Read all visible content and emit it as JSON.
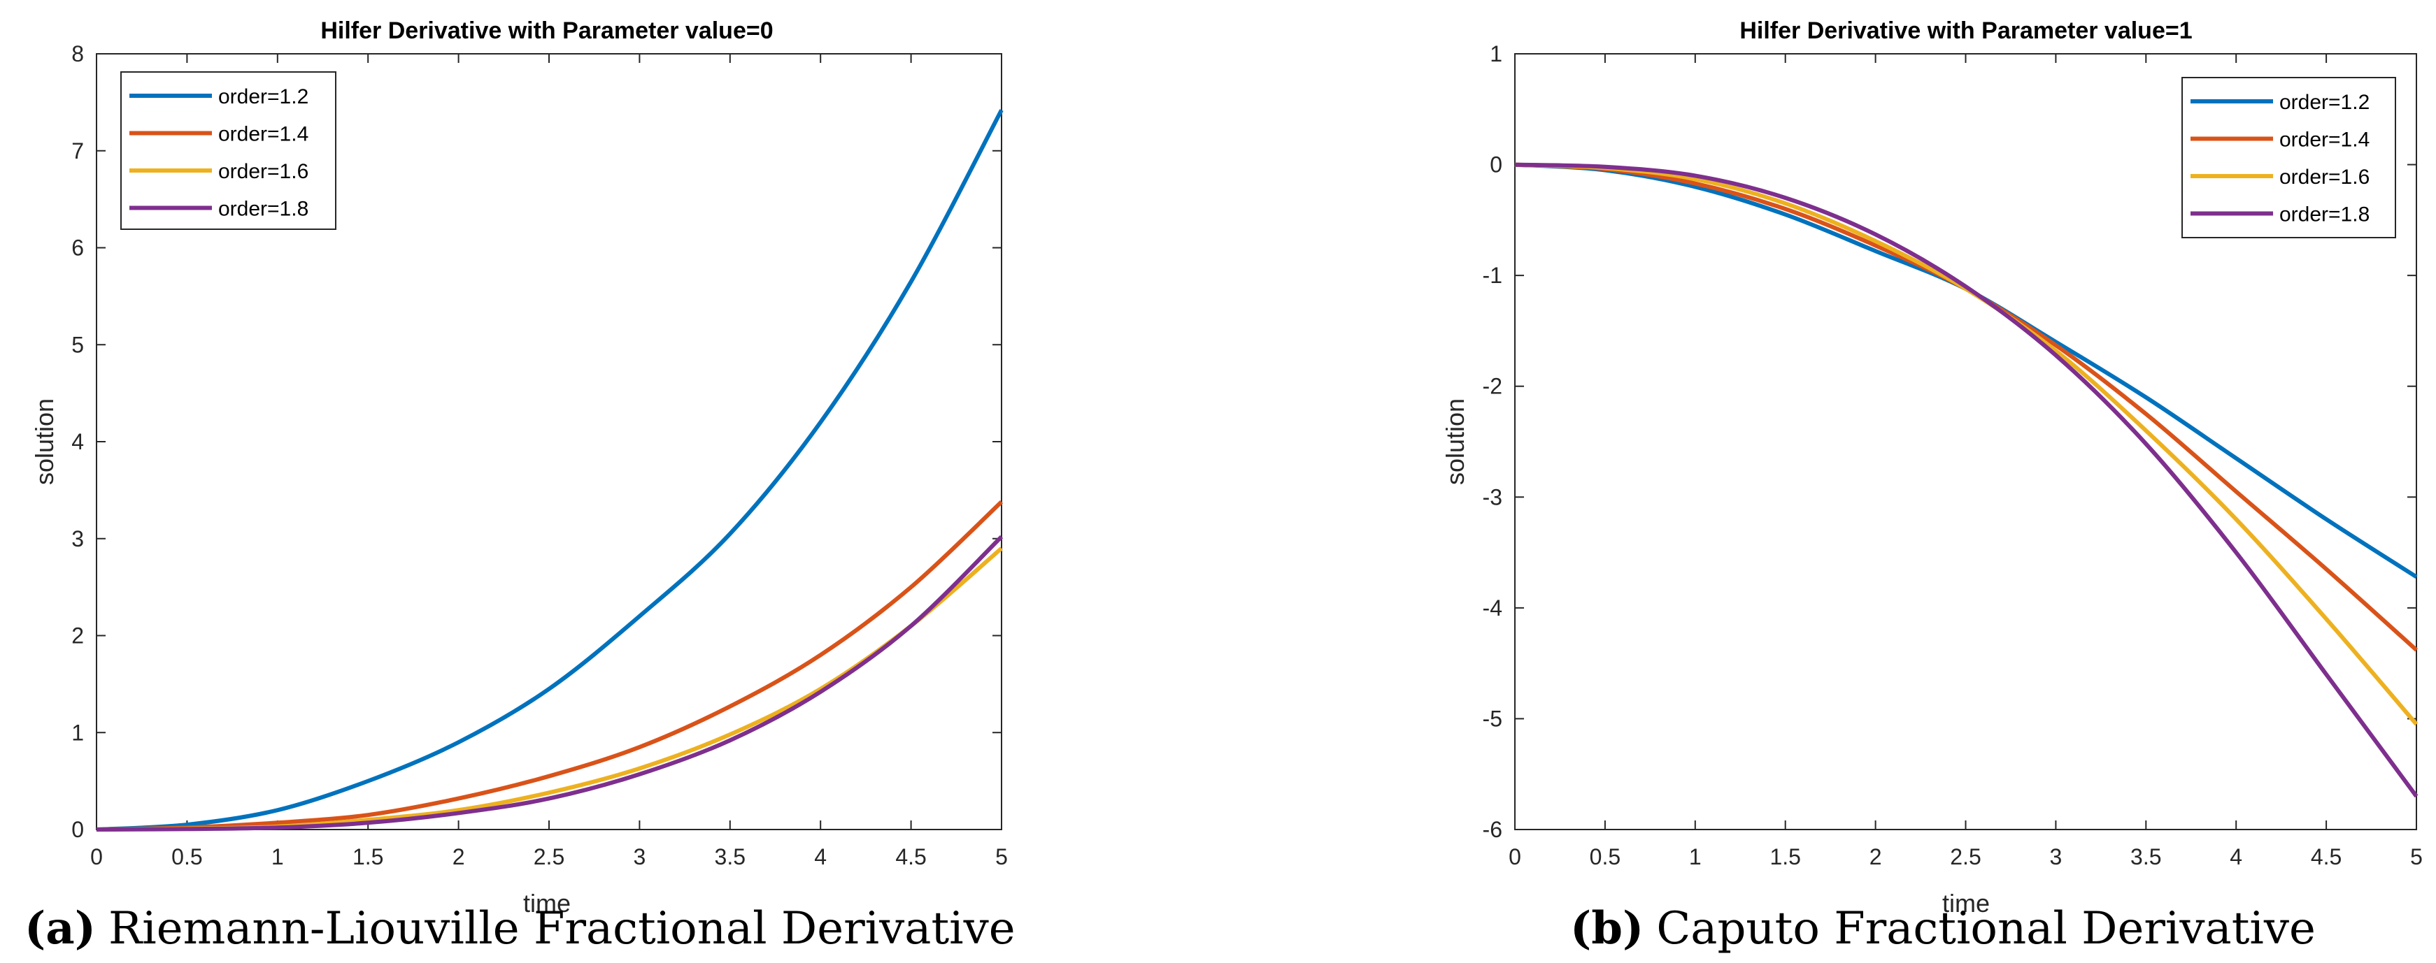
{
  "chart_data": [
    {
      "type": "line",
      "title": "Hilfer Derivative with Parameter value=0",
      "xlabel": "time",
      "ylabel": "solution",
      "caption_label": "(a)",
      "caption_text": "Riemann-Liouville Fractional Derivative",
      "xlim": [
        0,
        5
      ],
      "ylim": [
        0,
        8
      ],
      "xticks": [
        "0",
        "0.5",
        "1",
        "1.5",
        "2",
        "2.5",
        "3",
        "3.5",
        "4",
        "4.5",
        "5"
      ],
      "yticks": [
        "0",
        "1",
        "2",
        "3",
        "4",
        "5",
        "6",
        "7",
        "8"
      ],
      "legend_position": "top-left",
      "x": [
        0,
        0.5,
        1,
        1.5,
        2,
        2.5,
        3,
        3.5,
        4,
        4.5,
        5
      ],
      "series": [
        {
          "name": "order=1.2",
          "color": "#0072BD",
          "values": [
            0,
            0.05,
            0.2,
            0.5,
            0.9,
            1.45,
            2.2,
            3.05,
            4.2,
            5.65,
            7.42
          ]
        },
        {
          "name": "order=1.4",
          "color": "#D95319",
          "values": [
            0,
            0.02,
            0.07,
            0.15,
            0.32,
            0.55,
            0.85,
            1.27,
            1.8,
            2.5,
            3.38
          ]
        },
        {
          "name": "order=1.6",
          "color": "#EDB120",
          "values": [
            0,
            0.01,
            0.03,
            0.1,
            0.2,
            0.38,
            0.63,
            0.98,
            1.45,
            2.1,
            2.9
          ]
        },
        {
          "name": "order=1.8",
          "color": "#7E2F8E",
          "values": [
            0,
            0.005,
            0.02,
            0.07,
            0.17,
            0.32,
            0.57,
            0.92,
            1.42,
            2.1,
            3.02
          ]
        }
      ]
    },
    {
      "type": "line",
      "title": "Hilfer Derivative with Parameter value=1",
      "xlabel": "time",
      "ylabel": "solution",
      "caption_label": "(b)",
      "caption_text": "Caputo Fractional Derivative",
      "xlim": [
        0,
        5
      ],
      "ylim": [
        -6,
        1
      ],
      "xticks": [
        "0",
        "0.5",
        "1",
        "1.5",
        "2",
        "2.5",
        "3",
        "3.5",
        "4",
        "4.5",
        "5"
      ],
      "yticks": [
        "-6",
        "-5",
        "-4",
        "-3",
        "-2",
        "-1",
        "0",
        "1"
      ],
      "legend_position": "top-right",
      "x": [
        0,
        0.5,
        1,
        1.5,
        2,
        2.5,
        3,
        3.5,
        4,
        4.5,
        5
      ],
      "series": [
        {
          "name": "order=1.2",
          "color": "#0072BD",
          "values": [
            0,
            -0.05,
            -0.2,
            -0.45,
            -0.78,
            -1.12,
            -1.6,
            -2.1,
            -2.65,
            -3.2,
            -3.72
          ]
        },
        {
          "name": "order=1.4",
          "color": "#D95319",
          "values": [
            0,
            -0.04,
            -0.17,
            -0.4,
            -0.73,
            -1.12,
            -1.63,
            -2.25,
            -2.95,
            -3.65,
            -4.38
          ]
        },
        {
          "name": "order=1.6",
          "color": "#EDB120",
          "values": [
            0,
            -0.03,
            -0.13,
            -0.35,
            -0.69,
            -1.12,
            -1.68,
            -2.4,
            -3.2,
            -4.1,
            -5.05
          ]
        },
        {
          "name": "order=1.8",
          "color": "#7E2F8E",
          "values": [
            0,
            -0.02,
            -0.1,
            -0.3,
            -0.63,
            -1.1,
            -1.72,
            -2.52,
            -3.5,
            -4.6,
            -5.7
          ]
        }
      ]
    }
  ]
}
